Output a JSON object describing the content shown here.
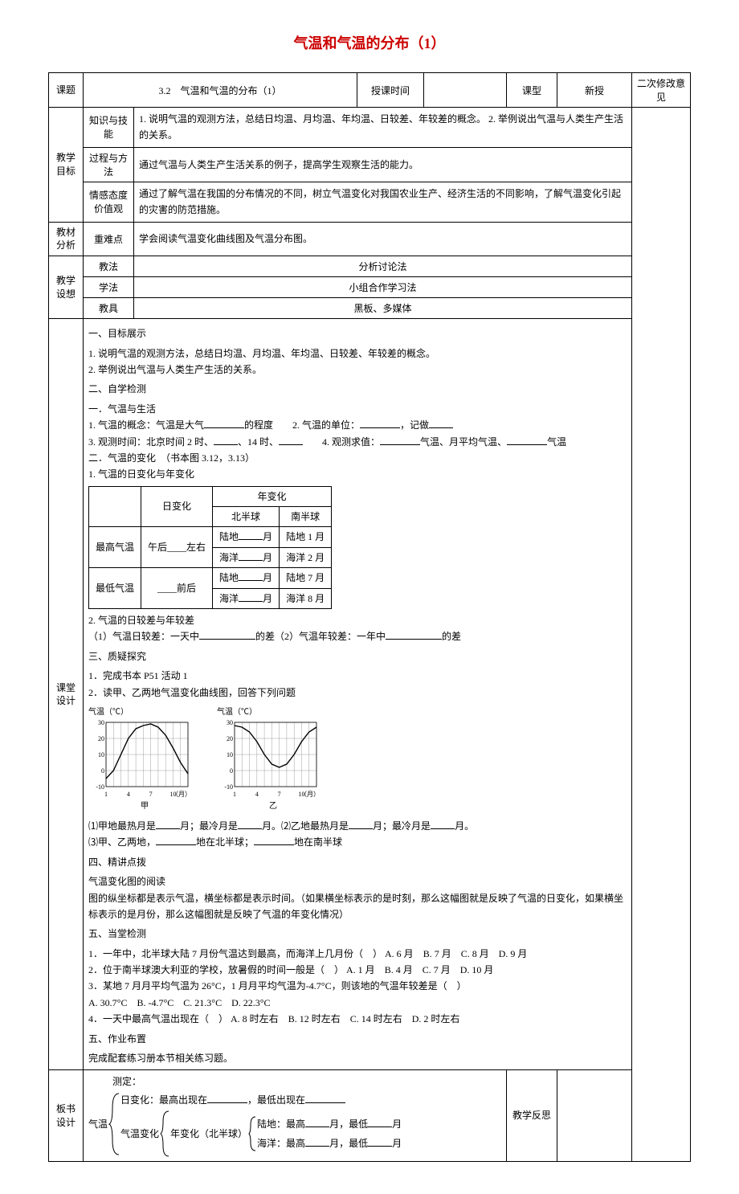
{
  "title": "气温和气温的分布（1）",
  "header": {
    "topic_label": "课题",
    "topic_value": "3.2　气温和气温的分布（1）",
    "time_label": "授课时间",
    "type_label": "课型",
    "type_value": "新授",
    "revise_label": "二次修改意见"
  },
  "objectives": {
    "group_label": "教学目标",
    "rows": [
      {
        "label": "知识与技能",
        "text": "1. 说明气温的观测方法，总结日均温、月均温、年均温、日较差、年较差的概念。\n2. 举例说出气温与人类生产生活的关系。"
      },
      {
        "label": "过程与方法",
        "text": "通过气温与人类生产生活关系的例子，提高学生观察生活的能力。"
      },
      {
        "label": "情感态度价值观",
        "text": "通过了解气温在我国的分布情况的不同，树立气温变化对我国农业生产、经济生活的不同影响，了解气温变化引起的灾害的防范措施。"
      }
    ]
  },
  "analysis": {
    "group_label": "教材分析",
    "row_label": "重难点",
    "text": "学会阅读气温变化曲线图及气温分布图。"
  },
  "design": {
    "group_label": "教学设想",
    "rows": [
      {
        "label": "教法",
        "text": "分析讨论法"
      },
      {
        "label": "学法",
        "text": "小组合作学习法"
      },
      {
        "label": "教具",
        "text": "黑板、多媒体"
      }
    ]
  },
  "lesson": {
    "group_label": "课堂设计",
    "s1_head": "一、目标展示",
    "s1_l1": "1. 说明气温的观测方法，总结日均温、月均温、年均温、日较差、年较差的概念。",
    "s1_l2": "2. 举例说出气温与人类生产生活的关系。",
    "s2_head": "二、自学检测",
    "s2_sub1": "一．气温与生活",
    "s2_l1a": "1. 气温的概念：气温是大气",
    "s2_l1b": "的程度　　2. 气温的单位：",
    "s2_l1c": "，记做",
    "s2_l2a": "3. 观测时间：北京时间 2 时、",
    "s2_l2b": "、14 时、",
    "s2_l2c": "　　4. 观测求值：",
    "s2_l2d": "气温、月平均气温、",
    "s2_l2e": "气温",
    "s2_sub2": "二．气温的变化　（书本图 3.12，3.13）",
    "s2_sub2h": "1. 气温的日变化与年变化",
    "table": {
      "r0c1": "日变化",
      "r0c2": "年变化",
      "r1c2": "北半球",
      "r1c3": "南半球",
      "r2c0": "最高气温",
      "r2c1": "午后____左右",
      "r2c2a": "陆地",
      "r2c2b": "月",
      "r2c3": "陆地 1 月",
      "r3c2a": "海洋",
      "r3c2b": "月",
      "r3c3": "海洋 2 月",
      "r4c0": "最低气温",
      "r4c1": "____前后",
      "r4c2a": "陆地",
      "r4c2b": "月",
      "r4c3": "陆地 7 月",
      "r5c2a": "海洋",
      "r5c2b": "月",
      "r5c3": "海洋 8 月"
    },
    "s2_sub3": "2. 气温的日较差与年较差",
    "s2_l3a": "（1）气温日较差：一天中",
    "s2_l3b": "的差（2）气温年较差：一年中",
    "s2_l3c": "的差",
    "s3_head": "三、质疑探究",
    "s3_l1": "1．完成书本 P51 活动 1",
    "s3_l2": "2．读甲、乙两地气温变化曲线图，回答下列问题",
    "chart": {
      "y_label": "气温（℃）",
      "x_label": "（月）",
      "y_ticks": [
        -10,
        0,
        10,
        20,
        30
      ],
      "x_ticks": [
        1,
        4,
        7,
        10
      ],
      "a_name": "甲",
      "b_name": "乙",
      "a_values": [
        -5,
        0,
        10,
        20,
        26,
        28,
        29,
        27,
        22,
        14,
        5,
        -2
      ],
      "b_values": [
        28,
        27,
        24,
        18,
        10,
        4,
        2,
        4,
        10,
        18,
        24,
        27
      ],
      "line_color": "#000000",
      "grid_color": "#888888",
      "bg_color": "#ffffff",
      "width": 130,
      "height": 110
    },
    "s3_q1a": "⑴甲地最热月是",
    "s3_q1b": "月；最冷月是",
    "s3_q1c": "月。⑵乙地最热月是",
    "s3_q1d": "月；最冷月是",
    "s3_q1e": "月。",
    "s3_q2a": "⑶甲、乙两地，",
    "s3_q2b": "地在北半球；",
    "s3_q2c": "地在南半球",
    "s4_head": "四、精讲点拨",
    "s4_sub": "气温变化图的阅读",
    "s4_text": "图的纵坐标都是表示气温，横坐标都是表示时间。（如果横坐标表示的是时刻，那么这幅图就是反映了气温的日变化，如果横坐标表示的是月份，那么这幅图就是反映了气温的年变化情况）",
    "s5_head": "五、当堂检测",
    "q1": {
      "stem": "1．一年中，北半球大陆 7 月份气温达到最高，而海洋上几月份（　）",
      "a": "A. 6 月",
      "b": "B. 7 月",
      "c": "C. 8 月",
      "d": "D. 9 月"
    },
    "q2": {
      "stem": "2．位于南半球澳大利亚的学校，放暑假的时间一般是（　）",
      "a": "A. 1 月",
      "b": "B. 4 月",
      "c": "C. 7 月",
      "d": "D. 10 月"
    },
    "q3": {
      "stem": "3．某地 7 月月平均气温为 26°C，1 月月平均气温为-4.7°C，则该地的气温年较差是（　）",
      "a": "A. 30.7°C",
      "b": "B. -4.7°C",
      "c": "C. 21.3°C",
      "d": "D. 22.3°C"
    },
    "q4": {
      "stem": "4．一天中最高气温出现在（　）",
      "a": "A. 8 时左右",
      "b": "B. 12 时左右",
      "c": "C. 14 时左右",
      "d": "D. 2 时左右"
    },
    "s6_head": "五、作业布置",
    "s6_text": "完成配套练习册本节相关练习题。"
  },
  "board": {
    "group_label": "板书设计",
    "pre": "测定：",
    "root": "气温",
    "b1a": "日变化：最高出现在",
    "b1b": "，最低出现在",
    "b2": "气温变化",
    "b3": "年变化（北半球）",
    "b3la": "陆地：最高",
    "b3lb": "月，最低",
    "b3lc": "月",
    "b3sa": "海洋：最高",
    "b3sb": "月，最低",
    "b3sc": "月",
    "reflect_label": "教学反思"
  }
}
